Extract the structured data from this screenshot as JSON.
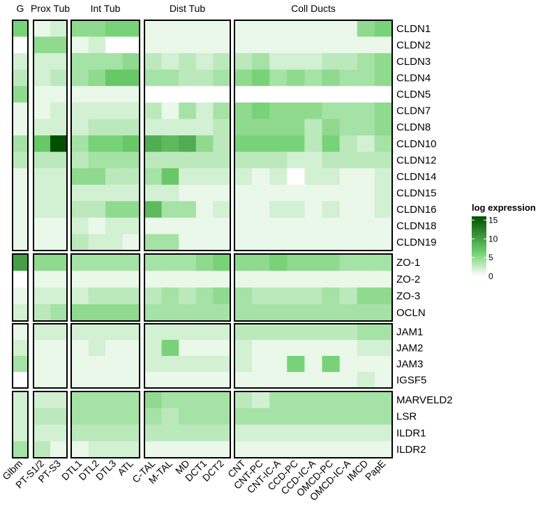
{
  "chart_data": {
    "type": "heatmap",
    "legend": {
      "title": "log expression",
      "ticks": [
        0,
        5,
        10,
        15
      ],
      "range": [
        0,
        16
      ],
      "color_low": "#ffffff",
      "color_mid": "#6fd06f",
      "color_high": "#005000",
      "placement": "right"
    },
    "column_groups": [
      {
        "label": "G",
        "columns": [
          "Glbm"
        ]
      },
      {
        "label": "Prox Tub",
        "columns": [
          "PT-S1/2",
          "PT-S3"
        ]
      },
      {
        "label": "Int Tub",
        "columns": [
          "DTL1",
          "DTL2",
          "DTL3",
          "ATL"
        ]
      },
      {
        "label": "Dist Tub",
        "columns": [
          "C-TAL",
          "M-TAL",
          "MD",
          "DCT1",
          "DCT2"
        ]
      },
      {
        "label": "Coll Ducts",
        "columns": [
          "CNT",
          "CNT-PC",
          "CNT-IC-A",
          "CCD-PC",
          "CCD-IC-A",
          "OMCD-PC",
          "OMCD-IC-A",
          "IMCD",
          "PapE"
        ]
      }
    ],
    "columns": [
      "Glbm",
      "PT-S1/2",
      "PT-S3",
      "DTL1",
      "DTL2",
      "DTL3",
      "ATL",
      "C-TAL",
      "M-TAL",
      "MD",
      "DCT1",
      "DCT2",
      "CNT",
      "CNT-PC",
      "CNT-IC-A",
      "CCD-PC",
      "CCD-IC-A",
      "OMCD-PC",
      "OMCD-IC-A",
      "IMCD",
      "PapE"
    ],
    "row_groups": [
      {
        "rows": [
          "CLDN1",
          "CLDN2",
          "CLDN3",
          "CLDN4",
          "CLDN5",
          "CLDN7",
          "CLDN8",
          "CLDN10",
          "CLDN12",
          "CLDN14",
          "CLDN15",
          "CLDN16",
          "CLDN18",
          "CLDN19"
        ]
      },
      {
        "rows": [
          "ZO-1",
          "ZO-2",
          "ZO-3",
          "OCLN"
        ]
      },
      {
        "rows": [
          "JAM1",
          "JAM2",
          "JAM3",
          "IGSF5"
        ]
      },
      {
        "rows": [
          "MARVELD2",
          "LSR",
          "ILDR1",
          "ILDR2"
        ]
      }
    ],
    "values": [
      [
        6,
        1,
        2,
        5,
        5,
        6,
        6,
        1,
        1,
        1,
        1,
        1,
        1,
        1,
        1,
        1,
        1,
        1,
        1,
        5,
        6
      ],
      [
        0,
        5,
        5,
        1,
        2,
        0,
        0,
        1,
        1,
        1,
        1,
        1,
        1,
        1,
        1,
        1,
        1,
        1,
        1,
        1,
        1
      ],
      [
        2,
        2,
        2,
        4,
        4,
        4,
        5,
        3,
        2,
        3,
        2,
        3,
        3,
        4,
        2,
        2,
        2,
        3,
        3,
        4,
        5
      ],
      [
        3,
        2,
        3,
        4,
        5,
        7,
        7,
        4,
        4,
        3,
        3,
        4,
        5,
        6,
        4,
        5,
        4,
        5,
        4,
        4,
        5
      ],
      [
        5,
        1,
        1,
        1,
        1,
        1,
        1,
        0,
        0,
        0,
        0,
        0,
        0,
        0,
        0,
        0,
        0,
        0,
        0,
        0,
        0
      ],
      [
        1,
        1,
        2,
        2,
        2,
        2,
        2,
        3,
        1,
        4,
        2,
        4,
        5,
        6,
        5,
        5,
        5,
        4,
        4,
        4,
        5
      ],
      [
        1,
        2,
        2,
        2,
        3,
        3,
        3,
        2,
        2,
        2,
        2,
        3,
        5,
        5,
        5,
        5,
        3,
        5,
        4,
        4,
        5
      ],
      [
        4,
        7,
        16,
        4,
        6,
        6,
        7,
        9,
        8,
        9,
        5,
        3,
        6,
        6,
        6,
        6,
        3,
        6,
        3,
        2,
        4
      ],
      [
        3,
        3,
        3,
        3,
        4,
        4,
        4,
        3,
        3,
        3,
        3,
        3,
        3,
        3,
        3,
        2,
        2,
        3,
        3,
        3,
        3
      ],
      [
        1,
        2,
        2,
        5,
        5,
        3,
        3,
        4,
        7,
        2,
        2,
        2,
        2,
        1,
        2,
        0,
        2,
        2,
        1,
        1,
        2
      ],
      [
        1,
        2,
        2,
        2,
        2,
        2,
        2,
        2,
        2,
        1,
        1,
        1,
        1,
        1,
        1,
        1,
        1,
        1,
        1,
        1,
        2
      ],
      [
        1,
        2,
        2,
        3,
        3,
        5,
        5,
        8,
        4,
        4,
        1,
        2,
        1,
        1,
        2,
        2,
        1,
        2,
        1,
        1,
        2
      ],
      [
        1,
        1,
        1,
        2,
        1,
        2,
        2,
        1,
        1,
        1,
        1,
        1,
        1,
        1,
        1,
        1,
        1,
        1,
        1,
        1,
        1
      ],
      [
        1,
        1,
        1,
        3,
        2,
        2,
        1,
        4,
        4,
        1,
        1,
        1,
        1,
        1,
        1,
        1,
        1,
        1,
        1,
        1,
        1
      ],
      [
        10,
        5,
        5,
        4,
        4,
        4,
        4,
        4,
        4,
        4,
        5,
        6,
        5,
        5,
        6,
        5,
        5,
        5,
        4,
        4,
        4
      ],
      [
        0,
        1,
        1,
        1,
        1,
        1,
        1,
        1,
        1,
        1,
        1,
        1,
        1,
        1,
        1,
        1,
        1,
        1,
        1,
        1,
        1
      ],
      [
        1,
        2,
        2,
        2,
        3,
        3,
        3,
        3,
        4,
        3,
        4,
        5,
        4,
        3,
        3,
        3,
        3,
        4,
        3,
        5,
        5
      ],
      [
        2,
        3,
        4,
        5,
        5,
        5,
        5,
        4,
        4,
        4,
        4,
        4,
        4,
        4,
        4,
        4,
        4,
        4,
        4,
        4,
        4
      ],
      [
        1,
        2,
        2,
        2,
        2,
        2,
        2,
        2,
        2,
        2,
        2,
        2,
        3,
        3,
        3,
        3,
        3,
        3,
        3,
        4,
        4
      ],
      [
        2,
        1,
        1,
        1,
        2,
        1,
        1,
        2,
        6,
        1,
        1,
        1,
        2,
        1,
        1,
        1,
        1,
        1,
        1,
        2,
        2
      ],
      [
        4,
        1,
        1,
        1,
        1,
        1,
        1,
        2,
        2,
        2,
        2,
        2,
        2,
        1,
        1,
        6,
        1,
        6,
        1,
        1,
        1
      ],
      [
        0,
        1,
        1,
        1,
        1,
        1,
        1,
        1,
        1,
        1,
        1,
        1,
        1,
        1,
        1,
        1,
        1,
        1,
        1,
        2,
        1
      ],
      [
        2,
        2,
        2,
        4,
        4,
        4,
        4,
        5,
        4,
        4,
        4,
        4,
        3,
        2,
        4,
        4,
        4,
        4,
        4,
        4,
        4
      ],
      [
        2,
        3,
        3,
        4,
        4,
        4,
        4,
        4,
        3,
        4,
        4,
        4,
        4,
        4,
        4,
        4,
        4,
        4,
        4,
        4,
        4
      ],
      [
        2,
        2,
        2,
        3,
        3,
        3,
        3,
        3,
        3,
        3,
        3,
        3,
        2,
        2,
        2,
        2,
        2,
        2,
        2,
        2,
        2
      ],
      [
        4,
        3,
        1,
        1,
        2,
        2,
        2,
        1,
        1,
        1,
        1,
        1,
        1,
        1,
        1,
        1,
        1,
        1,
        1,
        1,
        1
      ]
    ]
  }
}
